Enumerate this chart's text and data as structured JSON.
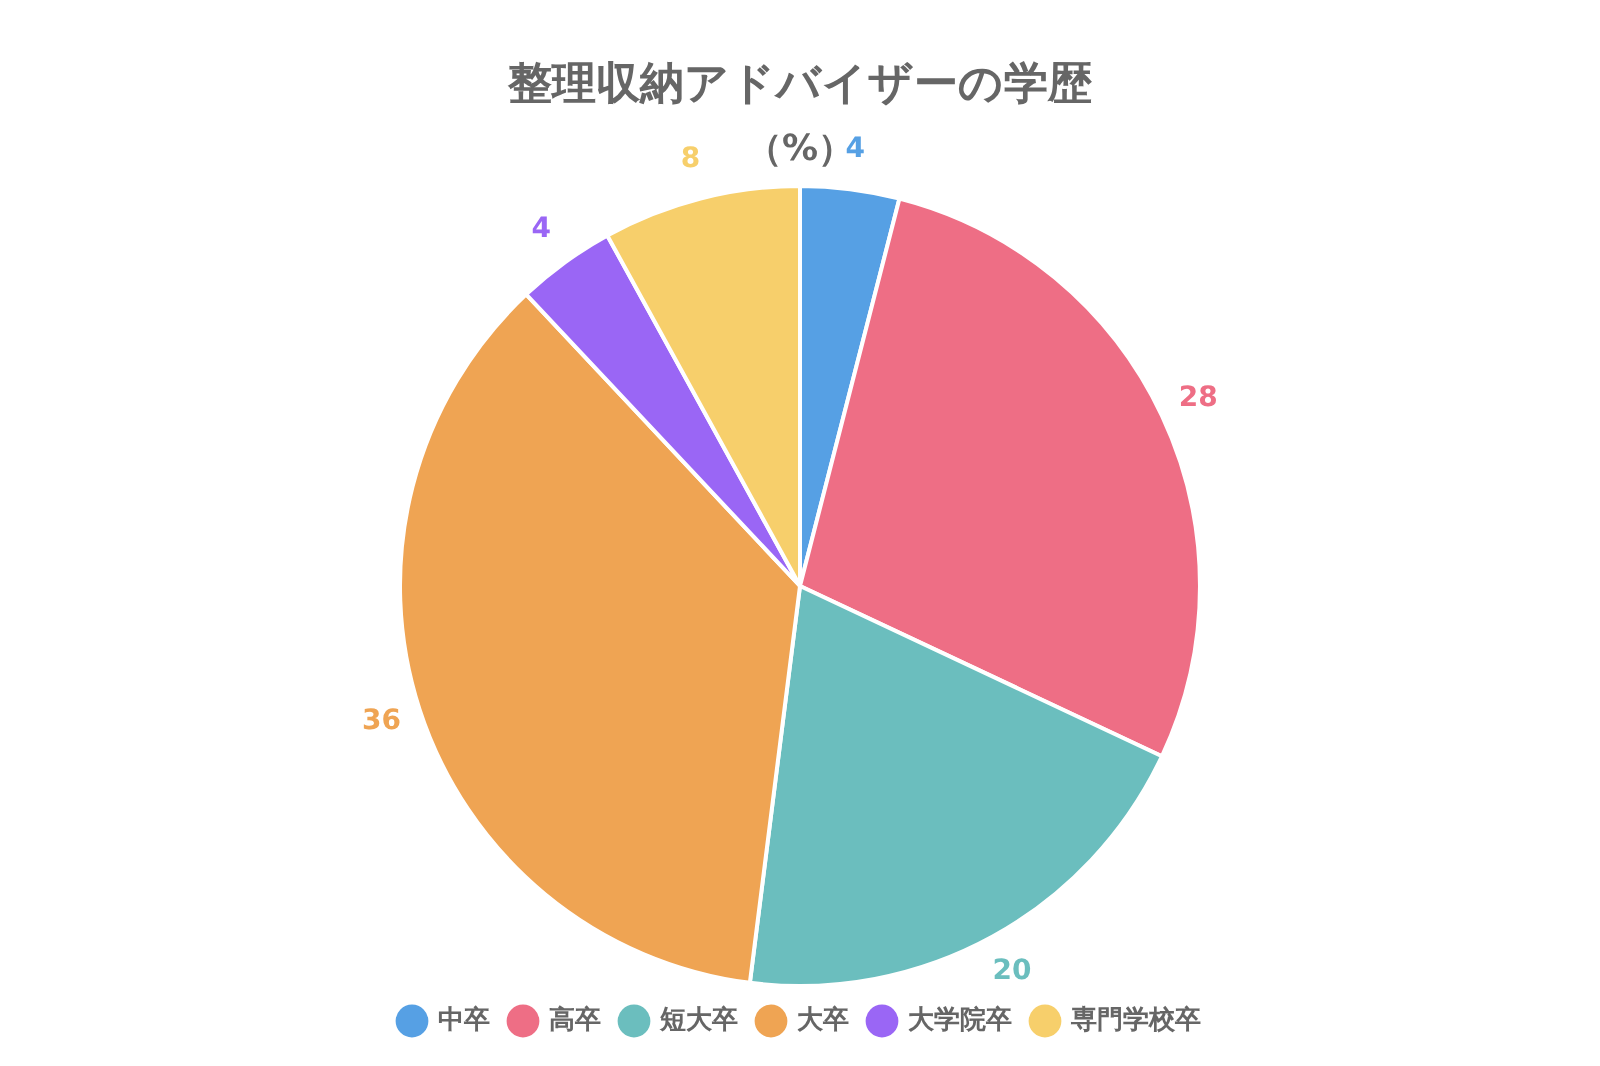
{
  "chart_data": {
    "type": "pie",
    "title": "整理収納アドバイザーの学歴",
    "subtitle": "（%）",
    "categories": [
      "中卒",
      "高卒",
      "短大卒",
      "大卒",
      "大学院卒",
      "専門学校卒"
    ],
    "values": [
      4,
      28,
      20,
      36,
      4,
      8
    ],
    "colors": [
      "#56a0e4",
      "#ee6e85",
      "#6bbebe",
      "#efa453",
      "#9a66f5",
      "#f7cf6b"
    ],
    "data_labels": true,
    "legend": "bottom"
  }
}
